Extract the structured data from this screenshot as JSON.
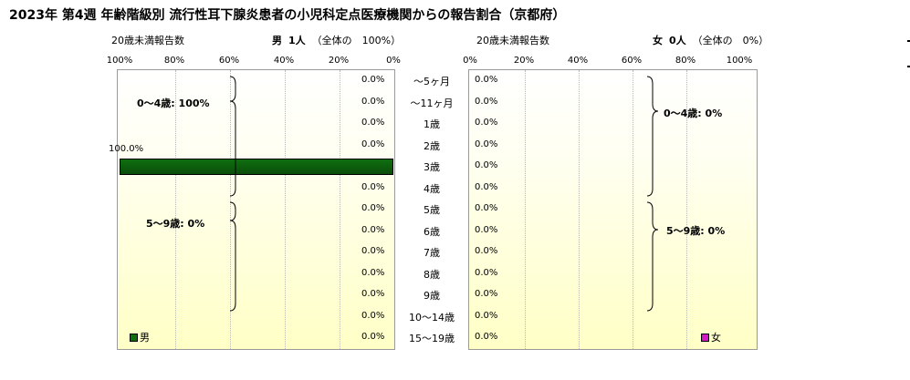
{
  "title": "2023年 第4週 年齢階級別 流行性耳下腺炎患者の小児科定点医療機関からの報告割合（京都府）",
  "male_header": {
    "under20_label": "20歳未満報告数",
    "sex_label": "男",
    "count": "1人",
    "share": "（全体の　100%）"
  },
  "female_header": {
    "under20_label": "20歳未満報告数",
    "sex_label": "女",
    "count": "0人",
    "share": "（全体の　0%）"
  },
  "left_ticks": [
    "100%",
    "80%",
    "60%",
    "40%",
    "20%",
    "0%"
  ],
  "right_ticks": [
    "0%",
    "20%",
    "40%",
    "60%",
    "80%",
    "100%"
  ],
  "male_group_labels": [
    "0～4歳: 100%",
    "5～9歳: 0%"
  ],
  "female_group_labels": [
    "0～4歳: 0%",
    "5～9歳: 0%"
  ],
  "legend": {
    "male": "男",
    "female": "女"
  },
  "colors": {
    "male": "#0f6f0f",
    "female": "#d418c8",
    "male_bar_dark": "#0a4d0a"
  },
  "chart_data": {
    "type": "bar",
    "orientation": "horizontal",
    "layout": "population-pyramid",
    "categories": [
      "～5ヶ月",
      "～11ヶ月",
      "1歳",
      "2歳",
      "3歳",
      "4歳",
      "5歳",
      "6歳",
      "7歳",
      "8歳",
      "9歳",
      "10～14歳",
      "15～19歳"
    ],
    "series": [
      {
        "name": "男",
        "values": [
          0,
          0,
          0,
          0,
          100,
          0,
          0,
          0,
          0,
          0,
          0,
          0,
          0
        ],
        "labels": [
          "0.0%",
          "0.0%",
          "0.0%",
          "0.0%",
          "100.0%",
          "0.0%",
          "0.0%",
          "0.0%",
          "0.0%",
          "0.0%",
          "0.0%",
          "0.0%",
          "0.0%"
        ]
      },
      {
        "name": "女",
        "values": [
          0,
          0,
          0,
          0,
          0,
          0,
          0,
          0,
          0,
          0,
          0,
          0,
          0
        ],
        "labels": [
          "0.0%",
          "0.0%",
          "0.0%",
          "0.0%",
          "0.0%",
          "0.0%",
          "0.0%",
          "0.0%",
          "0.0%",
          "0.0%",
          "0.0%",
          "0.0%",
          "0.0%"
        ]
      }
    ],
    "xlim": [
      0,
      100
    ],
    "grid": true,
    "legend_position": "bottom-left / bottom-right"
  }
}
